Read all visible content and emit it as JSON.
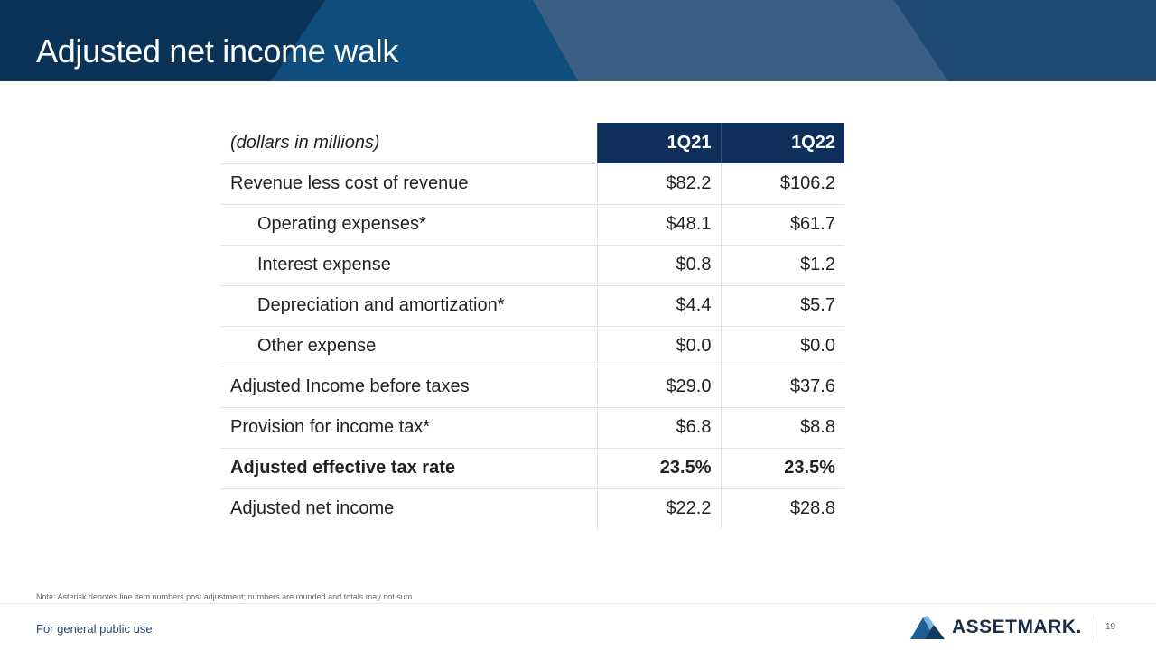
{
  "slide": {
    "title": "Adjusted net income walk",
    "note": "Note: Asterisk denotes line item numbers post adjustment; numbers are rounded and totals may not sum",
    "footer": "For general public use.",
    "page_number": "19",
    "logo_text": "ASSETMARK."
  },
  "colors": {
    "header_bg": "#0e3a63",
    "table_header_bg": "#0d2f5a"
  },
  "table": {
    "header_label": "(dollars in millions)",
    "columns": [
      "1Q21",
      "1Q22"
    ],
    "rows": [
      {
        "label": "Revenue less cost of revenue",
        "values": [
          "$82.2",
          "$106.2"
        ]
      },
      {
        "label": "Operating expenses*",
        "values": [
          "$48.1",
          "$61.7"
        ]
      },
      {
        "label": "Interest expense",
        "values": [
          "$0.8",
          "$1.2"
        ]
      },
      {
        "label": "Depreciation and amortization*",
        "values": [
          "$4.4",
          "$5.7"
        ]
      },
      {
        "label": "Other expense",
        "values": [
          "$0.0",
          "$0.0"
        ]
      },
      {
        "label": "Adjusted Income before taxes",
        "values": [
          "$29.0",
          "$37.6"
        ]
      },
      {
        "label": "Provision for income tax*",
        "values": [
          "$6.8",
          "$8.8"
        ]
      },
      {
        "label": "Adjusted effective tax rate",
        "values": [
          "23.5%",
          "23.5%"
        ]
      },
      {
        "label": "Adjusted net income",
        "values": [
          "$22.2",
          "$28.8"
        ]
      }
    ]
  }
}
